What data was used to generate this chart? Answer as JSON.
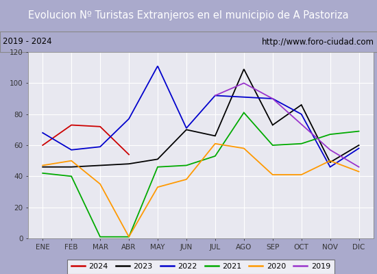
{
  "title": "Evolucion Nº Turistas Extranjeros en el municipio de A Pastoriza",
  "subtitle_left": "2019 - 2024",
  "subtitle_right": "http://www.foro-ciudad.com",
  "months": [
    "ENE",
    "FEB",
    "MAR",
    "ABR",
    "MAY",
    "JUN",
    "JUL",
    "AGO",
    "SEP",
    "OCT",
    "NOV",
    "DIC"
  ],
  "series": {
    "2024": [
      60,
      73,
      72,
      54,
      null,
      null,
      null,
      null,
      null,
      null,
      null,
      null
    ],
    "2023": [
      46,
      46,
      47,
      48,
      51,
      70,
      66,
      109,
      73,
      86,
      49,
      60
    ],
    "2022": [
      68,
      57,
      59,
      77,
      111,
      71,
      92,
      91,
      90,
      80,
      46,
      58
    ],
    "2021": [
      42,
      40,
      1,
      1,
      46,
      47,
      53,
      81,
      60,
      61,
      67,
      69
    ],
    "2020": [
      47,
      50,
      35,
      1,
      33,
      38,
      61,
      58,
      41,
      41,
      50,
      43
    ],
    "2019": [
      null,
      null,
      null,
      null,
      null,
      null,
      92,
      100,
      90,
      null,
      57,
      46
    ]
  },
  "colors": {
    "2024": "#cc0000",
    "2023": "#000000",
    "2022": "#0000cc",
    "2021": "#00aa00",
    "2020": "#ff9900",
    "2019": "#9933cc"
  },
  "ylim": [
    0,
    120
  ],
  "yticks": [
    0,
    20,
    40,
    60,
    80,
    100,
    120
  ],
  "title_bg": "#5588cc",
  "title_color": "#ffffff",
  "subtitle_bg": "#e8e8e8",
  "plot_bg": "#e8e8f0",
  "grid_color": "#ffffff",
  "outer_bg": "#aaaacc",
  "legend_bg": "#ffffff",
  "legend_edge": "#555555"
}
